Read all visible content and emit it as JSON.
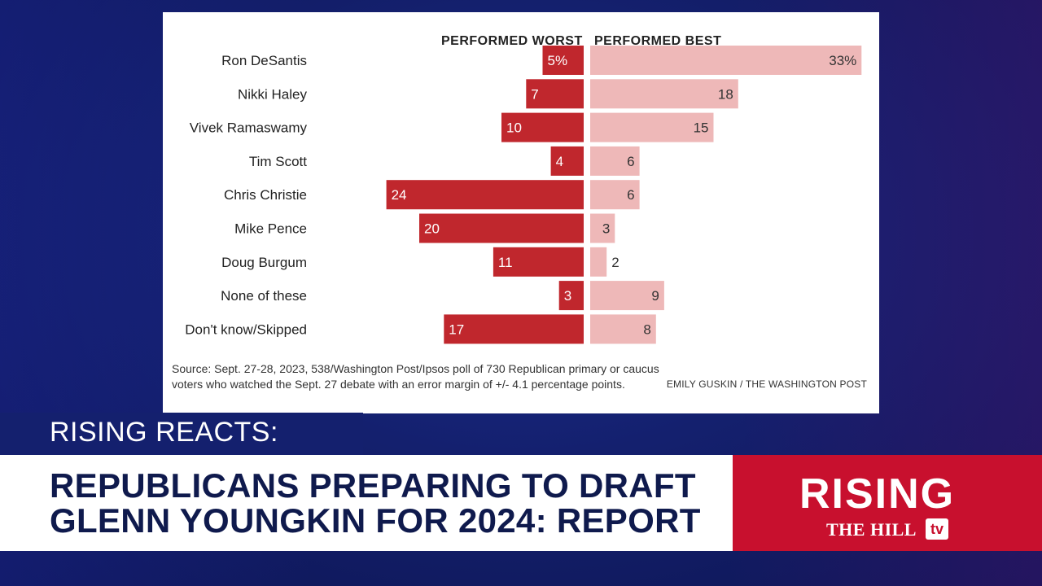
{
  "chart_data": {
    "type": "bar",
    "column_headers": {
      "left": "PERFORMED WORST",
      "right": "PERFORMED BEST"
    },
    "categories": [
      "Ron DeSantis",
      "Nikki Haley",
      "Vivek Ramaswamy",
      "Tim Scott",
      "Chris Christie",
      "Mike Pence",
      "Doug Burgum",
      "None of these",
      "Don't know/Skipped"
    ],
    "series": [
      {
        "name": "PERFORMED WORST",
        "values": [
          5,
          7,
          10,
          4,
          24,
          20,
          11,
          3,
          17
        ],
        "color": "#c0272d",
        "value_labels": [
          "5%",
          "7",
          "10",
          "4",
          "24",
          "20",
          "11",
          "3",
          "17"
        ]
      },
      {
        "name": "PERFORMED BEST",
        "values": [
          33,
          18,
          15,
          6,
          6,
          3,
          2,
          9,
          8
        ],
        "color": "#eeb8b8",
        "value_labels": [
          "33%",
          "18",
          "15",
          "6",
          "6",
          "3",
          "2",
          "9",
          "8"
        ]
      }
    ],
    "source": "Source: Sept. 27-28, 2023, 538/Washington Post/Ipsos poll of 730 Republican primary or caucus voters who watched the Sept. 27 debate with an error margin of +/- 4.1 percentage points.",
    "credit": "EMILY GUSKIN / THE WASHINGTON POST"
  },
  "lower_third": {
    "label": "RISING REACTS:",
    "headline": "REPUBLICANS PREPARING TO DRAFT GLENN YOUNGKIN FOR 2024: REPORT"
  },
  "brand": {
    "name": "RISING",
    "sub": "THE HILL",
    "tv": "tv",
    "color": "#c8102e"
  }
}
